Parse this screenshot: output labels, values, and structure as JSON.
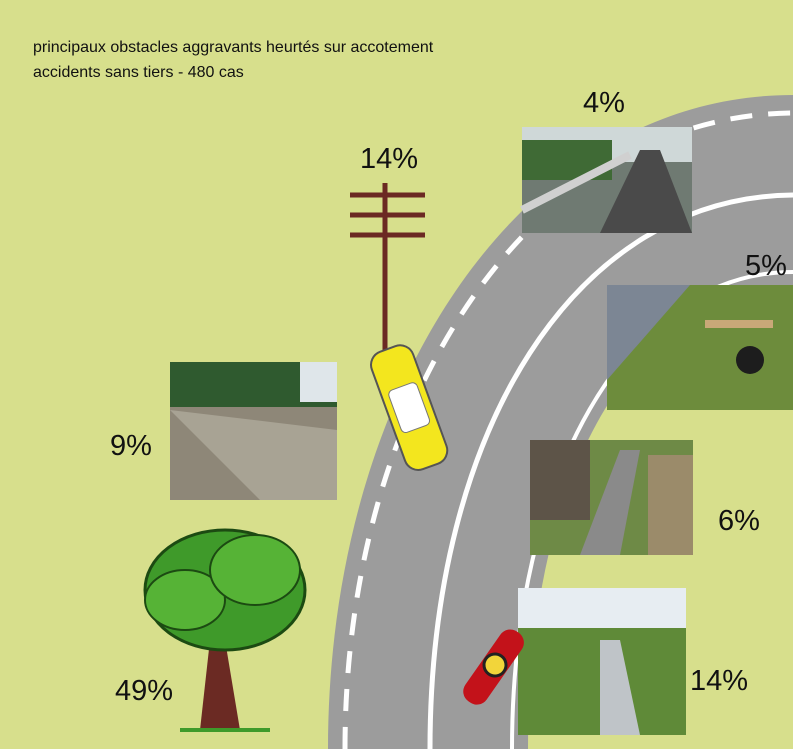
{
  "title": [
    "principaux obstacles aggravants heurtés sur accotement",
    "accidents sans tiers - 480 cas"
  ],
  "obstacles": [
    {
      "label": "4%"
    },
    {
      "label": "14%"
    },
    {
      "label": "5%"
    },
    {
      "label": "9%"
    },
    {
      "label": "6%"
    },
    {
      "label": "49%"
    },
    {
      "label": "14%"
    }
  ]
}
